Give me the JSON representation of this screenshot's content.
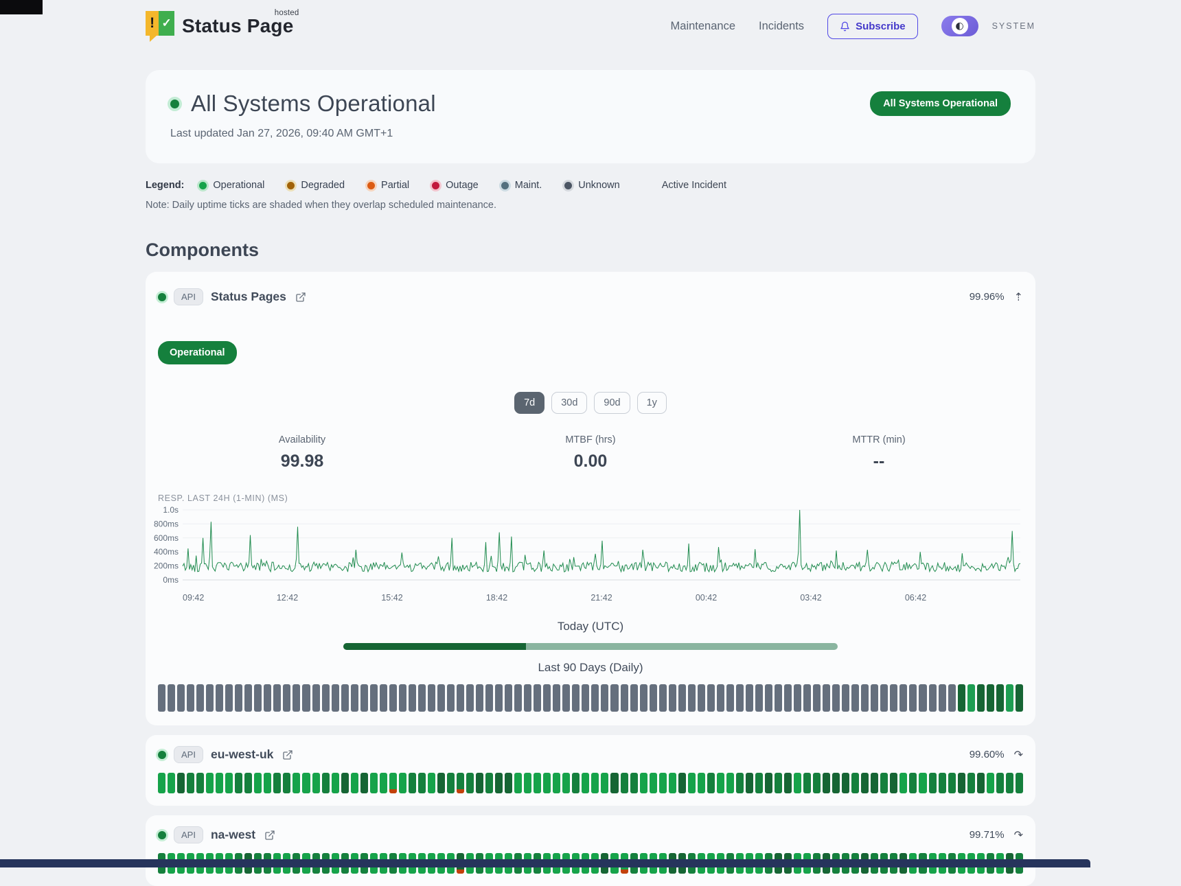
{
  "colors": {
    "green": "#16a34a",
    "green_dark": "#15803d",
    "green_darker": "#166534",
    "green_medium": "#1d9e52",
    "tick_gray": "#656f7d",
    "incident_red": "#c2410c",
    "accent_indigo": "#4f46e5",
    "line_green": "#1f8b4e"
  },
  "brand": {
    "word1": "Status",
    "word2": "Page",
    "hosted": "hosted",
    "icon_exclaim": "!",
    "icon_check": "✓"
  },
  "nav": {
    "items": [
      {
        "label": "Maintenance"
      },
      {
        "label": "Incidents"
      }
    ],
    "subscribe_label": "Subscribe",
    "system_label": "SYSTEM",
    "toggle_glyph": "◐"
  },
  "hero": {
    "title": "All Systems Operational",
    "updated": "Last updated Jan 27, 2026, 09:40 AM GMT+1",
    "badge": "All Systems Operational"
  },
  "legend": {
    "label": "Legend:",
    "items": [
      {
        "label": "Operational",
        "color": "#16a34a",
        "ring": "#bbe7cb"
      },
      {
        "label": "Degraded",
        "color": "#a16207",
        "ring": "#ecdfb6"
      },
      {
        "label": "Partial",
        "color": "#dc5b12",
        "ring": "#f6d4bc"
      },
      {
        "label": "Outage",
        "color": "#c2173c",
        "ring": "#f3c3cd"
      },
      {
        "label": "Maint.",
        "color": "#53707e",
        "ring": "#ccdbe2"
      },
      {
        "label": "Unknown",
        "color": "#4b5563",
        "ring": "#d4d8dd"
      }
    ],
    "active_incident_label": "Active Incident",
    "note": "Note: Daily uptime ticks are shaded when they overlap scheduled maintenance."
  },
  "components_section": {
    "title": "Components"
  },
  "component_main": {
    "badge": "API",
    "name": "Status Pages",
    "uptime": "99.96%",
    "collapse_icon": "⇡",
    "status_badge": "Operational",
    "ranges": [
      "7d",
      "30d",
      "90d",
      "1y"
    ],
    "selected_range": "7d",
    "stats": [
      {
        "label": "Availability",
        "value": "99.98"
      },
      {
        "label": "MTBF (hrs)",
        "value": "0.00"
      },
      {
        "label": "MTTR (min)",
        "value": "--"
      }
    ],
    "today_label": "Today (UTC)",
    "today_progress": 0.37,
    "ninety_label": "Last 90 Days (Daily)",
    "ninety_ticks": {
      "gray_count": 83,
      "tail": [
        "dark",
        "medium",
        "dark",
        "dark",
        "dark",
        "medium",
        "dark"
      ]
    }
  },
  "chart_data": {
    "type": "line",
    "title": "RESP. LAST 24H (1-MIN) (MS)",
    "x_ticks": [
      "09:42",
      "12:42",
      "15:42",
      "18:42",
      "21:42",
      "00:42",
      "03:42",
      "06:42"
    ],
    "y_ticks": [
      {
        "label": "1.0s",
        "ms": 1000
      },
      {
        "label": "800ms",
        "ms": 800
      },
      {
        "label": "600ms",
        "ms": 600
      },
      {
        "label": "400ms",
        "ms": 400
      },
      {
        "label": "200ms",
        "ms": 200
      },
      {
        "label": "0ms",
        "ms": 0
      }
    ],
    "ylim_ms": [
      0,
      1000
    ],
    "baseline_ms": 175,
    "noise_band_ms": [
      115,
      255
    ],
    "seed": 42,
    "spikes": [
      {
        "t": 0.006,
        "ms": 450
      },
      {
        "t": 0.024,
        "ms": 600
      },
      {
        "t": 0.034,
        "ms": 830
      },
      {
        "t": 0.08,
        "ms": 640
      },
      {
        "t": 0.137,
        "ms": 760
      },
      {
        "t": 0.207,
        "ms": 430
      },
      {
        "t": 0.262,
        "ms": 390
      },
      {
        "t": 0.322,
        "ms": 600
      },
      {
        "t": 0.362,
        "ms": 540
      },
      {
        "t": 0.378,
        "ms": 680
      },
      {
        "t": 0.392,
        "ms": 620
      },
      {
        "t": 0.432,
        "ms": 420
      },
      {
        "t": 0.501,
        "ms": 560
      },
      {
        "t": 0.55,
        "ms": 430
      },
      {
        "t": 0.605,
        "ms": 520
      },
      {
        "t": 0.64,
        "ms": 470
      },
      {
        "t": 0.684,
        "ms": 440
      },
      {
        "t": 0.737,
        "ms": 1000
      },
      {
        "t": 0.78,
        "ms": 420
      },
      {
        "t": 0.817,
        "ms": 430
      },
      {
        "t": 0.881,
        "ms": 400
      },
      {
        "t": 0.93,
        "ms": 380
      },
      {
        "t": 0.991,
        "ms": 700
      }
    ]
  },
  "components": [
    {
      "badge": "API",
      "name": "eu-west-uk",
      "uptime": "99.60%",
      "expand_icon": "↷",
      "ticks": {
        "count": 90,
        "seed": 7,
        "incidents": [
          24,
          31
        ]
      }
    },
    {
      "badge": "API",
      "name": "na-west",
      "uptime": "99.71%",
      "expand_icon": "↷",
      "ticks": {
        "count": 90,
        "seed": 13,
        "incidents": [
          31,
          48
        ]
      }
    }
  ]
}
